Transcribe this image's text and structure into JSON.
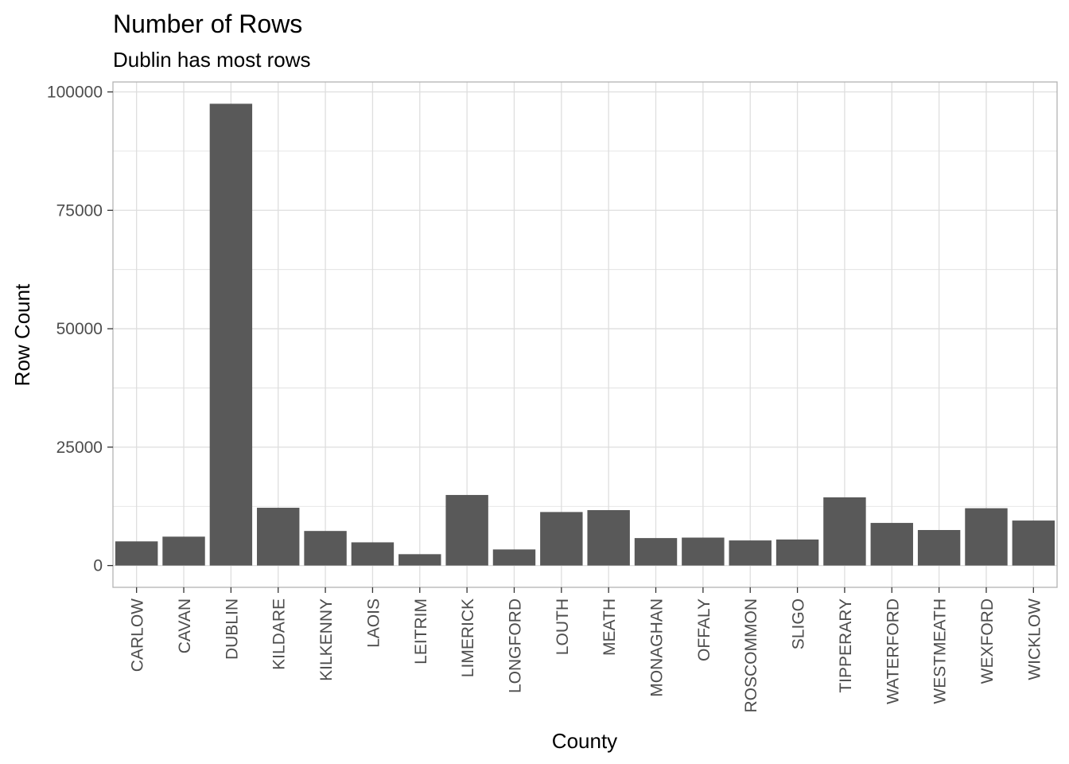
{
  "chart_data": {
    "type": "bar",
    "title": "Number of Rows",
    "subtitle": "Dublin has most rows",
    "xlabel": "County",
    "ylabel": "Row Count",
    "categories": [
      "CARLOW",
      "CAVAN",
      "DUBLIN",
      "KILDARE",
      "KILKENNY",
      "LAOIS",
      "LEITRIM",
      "LIMERICK",
      "LONGFORD",
      "LOUTH",
      "MEATH",
      "MONAGHAN",
      "OFFALY",
      "ROSCOMMON",
      "SLIGO",
      "TIPPERARY",
      "WATERFORD",
      "WESTMEATH",
      "WEXFORD",
      "WICKLOW"
    ],
    "values": [
      5100,
      6100,
      97500,
      12200,
      7300,
      4900,
      2400,
      14900,
      3400,
      11300,
      11700,
      5800,
      5900,
      5300,
      5500,
      14400,
      9000,
      7500,
      12100,
      9500
    ],
    "ylim": [
      -4600,
      102100
    ],
    "yticks": [
      0,
      25000,
      50000,
      75000,
      100000
    ],
    "ytick_labels": [
      "0",
      "25000",
      "50000",
      "75000",
      "100000"
    ],
    "grid": true,
    "bar_color": "#595959",
    "grid_color": "#dedede",
    "panel_border_color": "#b3b3b3"
  }
}
